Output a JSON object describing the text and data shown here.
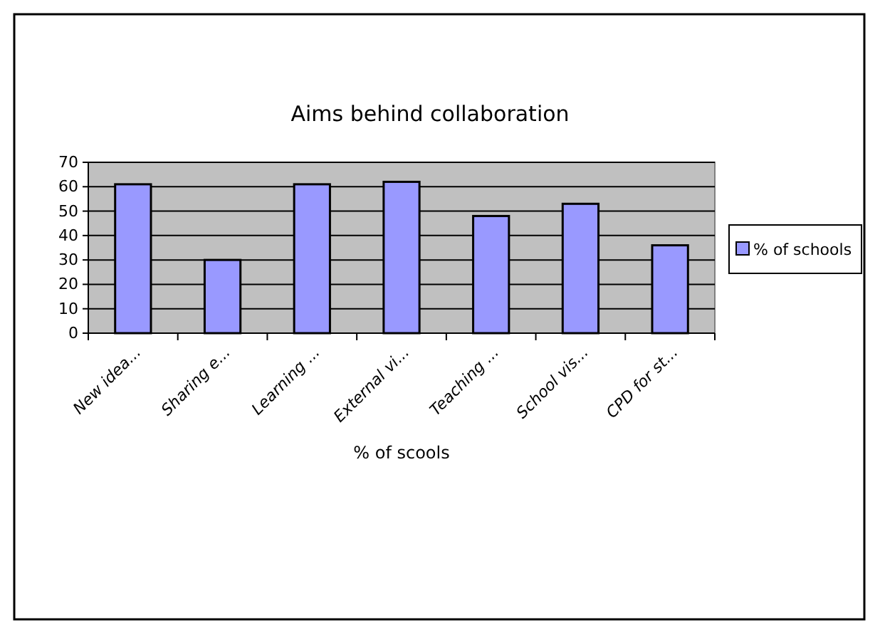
{
  "chart_data": {
    "type": "bar",
    "title": "Aims behind collaboration",
    "xlabel": "% of scools",
    "categories": [
      "New idea...",
      "Sharing e...",
      "Learning ...",
      "External vi...",
      "Teaching ...",
      "School vis...",
      "CPD for st..."
    ],
    "series": [
      {
        "name": "% of schools",
        "color": "#9999ff",
        "values": [
          61,
          30,
          61,
          62,
          48,
          53,
          36
        ]
      }
    ],
    "ylim": [
      0,
      70
    ],
    "yticks": [
      0,
      10,
      20,
      30,
      40,
      50,
      60,
      70
    ],
    "grid": "y",
    "legend": "right"
  }
}
